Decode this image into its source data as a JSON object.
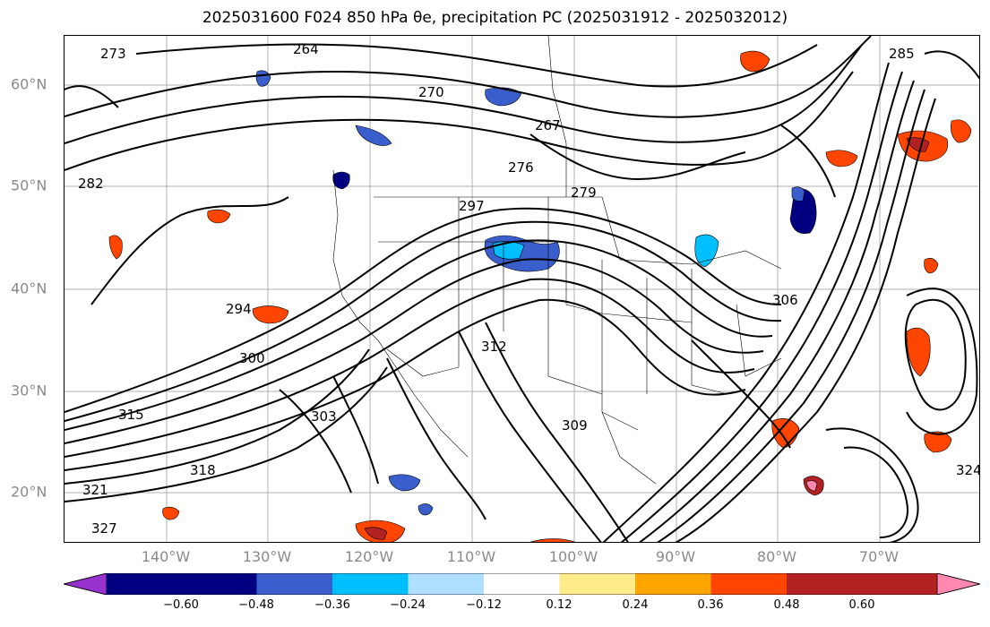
{
  "title": "2025031600 F024 850 hPa θe, precipitation PC (2025031912 - 2025032012)",
  "lat_labels": [
    "60°N",
    "50°N",
    "40°N",
    "30°N",
    "20°N"
  ],
  "lon_labels": [
    "140°W",
    "130°W",
    "120°W",
    "110°W",
    "100°W",
    "90°W",
    "80°W",
    "70°W"
  ],
  "colorbar": {
    "tick_labels": [
      "−0.60",
      "−0.48",
      "−0.36",
      "−0.24",
      "−0.12",
      "0.12",
      "0.24",
      "0.36",
      "0.48",
      "0.60"
    ],
    "colors": [
      "#9932cc",
      "#000080",
      "#3a5fcd",
      "#00bfff",
      "#b0e0ff",
      "#ffffff",
      "#ffeb8a",
      "#ffa500",
      "#ff4500",
      "#b22222",
      "#ff88b0"
    ]
  },
  "contour_labels": [
    "264",
    "270",
    "276",
    "267",
    "279",
    "282",
    "294",
    "297",
    "300",
    "303",
    "306",
    "309",
    "312",
    "315",
    "318",
    "321",
    "324",
    "327",
    "285",
    "273"
  ]
}
